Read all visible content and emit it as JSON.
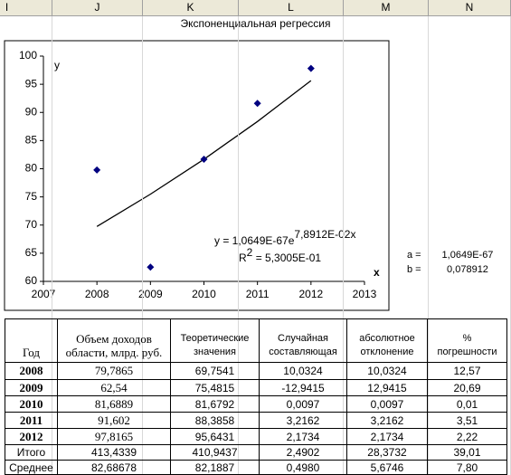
{
  "columns": [
    "I",
    "J",
    "K",
    "L",
    "M",
    "N"
  ],
  "sheet_title": "Экспоненциальная регрессия",
  "chart_data": {
    "type": "scatter",
    "x": [
      2008,
      2009,
      2010,
      2011,
      2012
    ],
    "series": [
      {
        "color": "#000080",
        "values": [
          79.7865,
          62.54,
          81.6889,
          91.602,
          97.8165
        ]
      }
    ],
    "trendline": {
      "color": "#000000",
      "values": [
        69.7541,
        75.4815,
        81.6792,
        88.3858,
        95.6431
      ]
    },
    "xlim": [
      2007,
      2013
    ],
    "xticks": [
      2007,
      2008,
      2009,
      2010,
      2011,
      2012,
      2013
    ],
    "ylim": [
      60,
      100
    ],
    "yticks": [
      60,
      65,
      70,
      75,
      80,
      85,
      90,
      95,
      100
    ],
    "xlabel": "x",
    "ylabel": "y",
    "equation": {
      "base": "y = 1,0649E-67e",
      "exponent": "7,8912E-02x"
    },
    "r2": {
      "base": "R",
      "sup": "2",
      "rest": " = 5,3005E-01"
    },
    "grid": false
  },
  "params": [
    [
      "a =",
      "1,0649E-67"
    ],
    [
      "b =",
      "0,078912"
    ]
  ],
  "table": {
    "header": [
      [
        "Год"
      ],
      [
        "Объем доходов",
        "области, млрд. руб."
      ],
      [
        "Теоретические",
        "значения"
      ],
      [
        "Случайная",
        "составляющая"
      ],
      [
        "абсолютное",
        "отклонение"
      ],
      [
        "%",
        "погрешности"
      ]
    ],
    "rows": [
      [
        "2008",
        "79,7865",
        "69,7541",
        "10,0324",
        "10,0324",
        "12,57"
      ],
      [
        "2009",
        "62,54",
        "75,4815",
        "-12,9415",
        "12,9415",
        "20,69"
      ],
      [
        "2010",
        "81,6889",
        "81,6792",
        "0,0097",
        "0,0097",
        "0,01"
      ],
      [
        "2011",
        "91,602",
        "88,3858",
        "3,2162",
        "3,2162",
        "3,51"
      ],
      [
        "2012",
        "97,8165",
        "95,6431",
        "2,1734",
        "2,1734",
        "2,22"
      ],
      [
        "Итого",
        "413,4339",
        "410,9437",
        "2,4902",
        "28,3732",
        "39,01"
      ],
      [
        "Среднее",
        "82,68678",
        "82,1887",
        "0,4980",
        "5,6746",
        "7,80"
      ]
    ]
  }
}
